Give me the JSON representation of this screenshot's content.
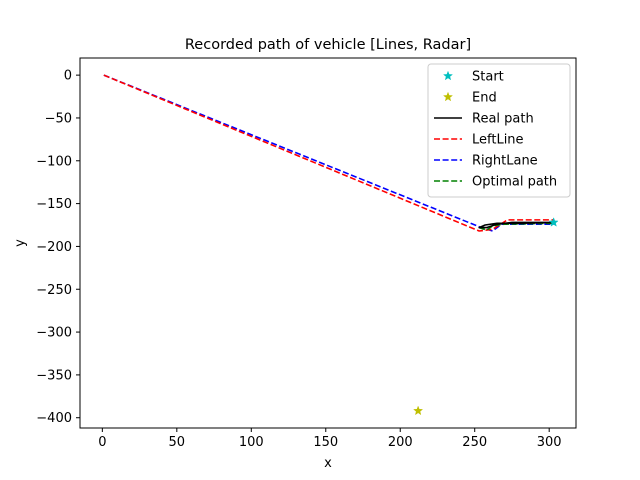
{
  "chart_data": {
    "type": "line",
    "title": "Recorded path of vehicle [Lines, Radar]",
    "xlabel": "x",
    "ylabel": "y",
    "xlim": [
      -15,
      318
    ],
    "ylim": [
      -412,
      20
    ],
    "xticks": [
      0,
      50,
      100,
      150,
      200,
      250,
      300
    ],
    "yticks": [
      0,
      -50,
      -100,
      -150,
      -200,
      -250,
      -300,
      -350,
      -400
    ],
    "grid": false,
    "legend_position": "top-right",
    "series": [
      {
        "name": "Start",
        "kind": "marker",
        "marker": "star",
        "color": "#00bfbf",
        "points": [
          [
            303,
            -172
          ]
        ]
      },
      {
        "name": "End",
        "kind": "marker",
        "marker": "star",
        "color": "#bfbf00",
        "points": [
          [
            212,
            -392
          ]
        ]
      },
      {
        "name": "Real path",
        "kind": "line",
        "style": "solid",
        "color": "#000000",
        "points": [
          [
            303,
            -172
          ],
          [
            275,
            -172
          ],
          [
            265,
            -174
          ],
          [
            258,
            -178
          ],
          [
            253,
            -178
          ],
          [
            257,
            -175
          ],
          [
            265,
            -173
          ],
          [
            280,
            -173
          ],
          [
            303,
            -172
          ]
        ]
      },
      {
        "name": "LeftLine",
        "kind": "line",
        "style": "dashed",
        "color": "#ff0000",
        "points": [
          [
            1,
            0
          ],
          [
            253,
            -182
          ],
          [
            262,
            -180
          ],
          [
            272,
            -169
          ],
          [
            303,
            -169
          ]
        ]
      },
      {
        "name": "RightLane",
        "kind": "line",
        "style": "dashed",
        "color": "#0000ff",
        "points": [
          [
            1,
            0
          ],
          [
            253,
            -177
          ],
          [
            262,
            -182
          ],
          [
            268,
            -174
          ],
          [
            303,
            -174
          ]
        ]
      },
      {
        "name": "Optimal path",
        "kind": "line",
        "style": "dashed",
        "color": "#008000",
        "points": [
          [
            253,
            -178
          ],
          [
            258,
            -181
          ],
          [
            262,
            -176
          ],
          [
            270,
            -174
          ],
          [
            303,
            -173
          ]
        ]
      }
    ]
  }
}
